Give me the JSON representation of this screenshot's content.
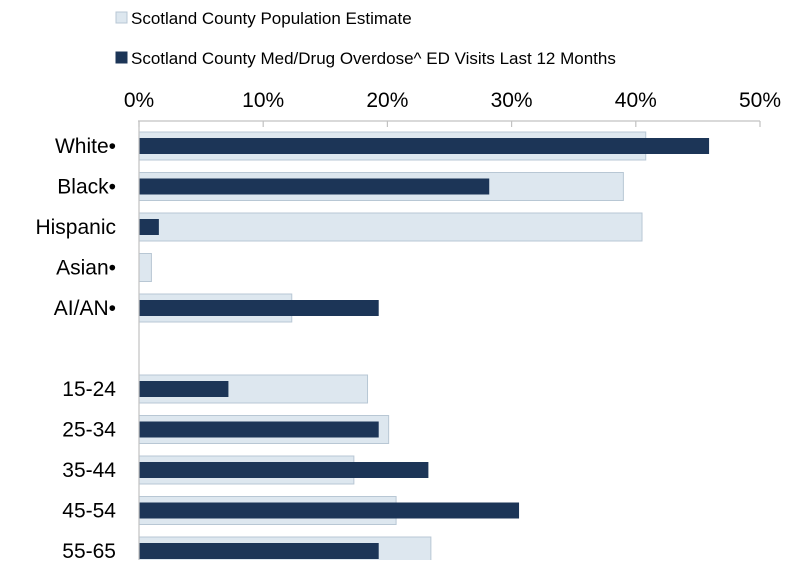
{
  "chart_data": {
    "type": "bar",
    "orientation": "horizontal",
    "title": "",
    "xlabel": "",
    "ylabel": "",
    "xlim": [
      0,
      50
    ],
    "xticks": [
      "0%",
      "10%",
      "20%",
      "30%",
      "40%",
      "50%"
    ],
    "legend_position": "top",
    "grid": false,
    "categories": [
      "White•",
      "Black•",
      "Hispanic",
      "Asian•",
      "AI/AN•",
      "",
      "15-24",
      "25-34",
      "35-44",
      "45-54",
      "55-65"
    ],
    "series": [
      {
        "name": "Scotland County Population Estimate",
        "color": "#dde7ef",
        "values": [
          40.8,
          39.0,
          40.5,
          1.0,
          12.3,
          null,
          18.4,
          20.1,
          17.3,
          20.7,
          23.5
        ]
      },
      {
        "name": "Scotland County Med/Drug Overdose^ ED Visits Last 12 Months",
        "color": "#1c3557",
        "values": [
          45.9,
          28.2,
          1.6,
          0,
          19.3,
          null,
          7.2,
          19.3,
          23.3,
          30.6,
          19.3
        ]
      }
    ]
  }
}
